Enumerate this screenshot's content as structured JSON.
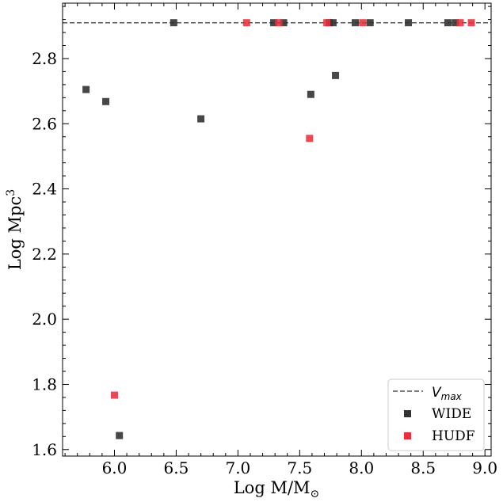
{
  "chart_data": {
    "type": "scatter",
    "xlabel": "Log M/M",
    "xlabel_sub": "⊙",
    "ylabel": "Log Mpc",
    "ylabel_sup": "3",
    "xlim": [
      5.58,
      9.05
    ],
    "ylim": [
      1.58,
      2.97
    ],
    "xticks": [
      6.0,
      6.5,
      7.0,
      7.5,
      8.0,
      8.5,
      9.0
    ],
    "xtick_labels": [
      "6.0",
      "6.5",
      "7.0",
      "7.5",
      "8.0",
      "8.5",
      "9.0"
    ],
    "yticks": [
      1.6,
      1.8,
      2.0,
      2.2,
      2.4,
      2.6,
      2.8
    ],
    "ytick_labels": [
      "1.6",
      "1.8",
      "2.0",
      "2.2",
      "2.4",
      "2.6",
      "2.8"
    ],
    "vmax": {
      "label": "V",
      "label_sub": "max",
      "value": 2.91,
      "color": "#555555"
    },
    "series": [
      {
        "name": "WIDE",
        "color": "#333333",
        "points": [
          {
            "x": 5.77,
            "y": 2.705
          },
          {
            "x": 5.93,
            "y": 2.668
          },
          {
            "x": 6.04,
            "y": 1.643
          },
          {
            "x": 6.48,
            "y": 2.91
          },
          {
            "x": 6.7,
            "y": 2.615
          },
          {
            "x": 7.29,
            "y": 2.91
          },
          {
            "x": 7.37,
            "y": 2.91
          },
          {
            "x": 7.59,
            "y": 2.69
          },
          {
            "x": 7.74,
            "y": 2.91
          },
          {
            "x": 7.77,
            "y": 2.91
          },
          {
            "x": 7.79,
            "y": 2.748
          },
          {
            "x": 7.95,
            "y": 2.91
          },
          {
            "x": 8.07,
            "y": 2.91
          },
          {
            "x": 8.38,
            "y": 2.91
          },
          {
            "x": 8.7,
            "y": 2.91
          },
          {
            "x": 8.76,
            "y": 2.91
          }
        ]
      },
      {
        "name": "HUDF",
        "color": "#e8303c",
        "points": [
          {
            "x": 6.0,
            "y": 1.767
          },
          {
            "x": 7.07,
            "y": 2.91
          },
          {
            "x": 7.33,
            "y": 2.91
          },
          {
            "x": 7.58,
            "y": 2.555
          },
          {
            "x": 7.72,
            "y": 2.91
          },
          {
            "x": 8.01,
            "y": 2.91
          },
          {
            "x": 8.8,
            "y": 2.91
          },
          {
            "x": 8.89,
            "y": 2.91
          }
        ]
      }
    ],
    "legend_position": "lower-right"
  }
}
